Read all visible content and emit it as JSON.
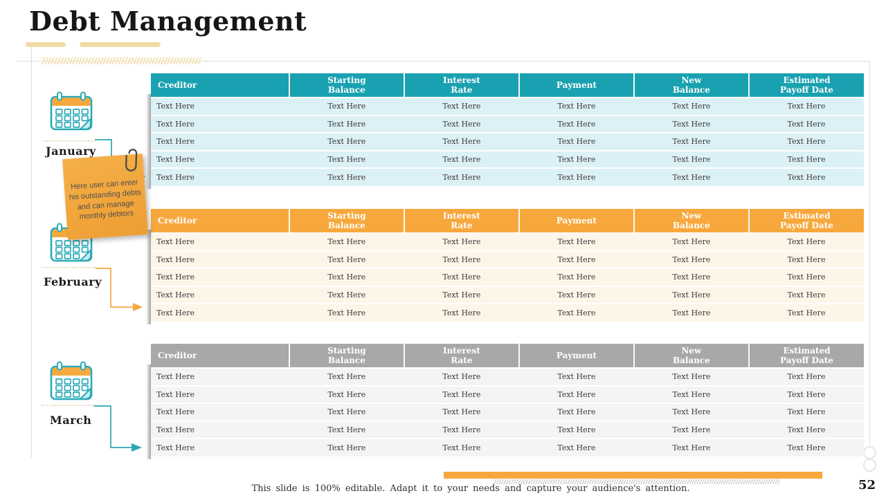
{
  "slide": {
    "title": "Debt Management",
    "page_number": "52",
    "footer_text": "This slide is 100% editable. Adapt it to your needs and capture your audience's attention."
  },
  "months": [
    {
      "label": "January"
    },
    {
      "label": "February"
    },
    {
      "label": "March"
    }
  ],
  "note": {
    "text": "Here user can enter\nhis outstanding debts\nand can manage\nmonthly debtors"
  },
  "table_columns": [
    "Creditor",
    "Starting\nBalance",
    "Interest\nRate",
    "Payment",
    "New\nBalance",
    "Estimated\nPayoff Date"
  ],
  "tables": [
    {
      "month": "January",
      "header_bg": "#1AA1B1",
      "row_bg": "#DCF1F6",
      "rows": [
        [
          "Text Here",
          "Text Here",
          "Text Here",
          "Text Here",
          "Text Here",
          "Text Here"
        ],
        [
          "Text Here",
          "Text Here",
          "Text Here",
          "Text Here",
          "Text Here",
          "Text Here"
        ],
        [
          "Text Here",
          "Text Here",
          "Text Here",
          "Text Here",
          "Text Here",
          "Text Here"
        ],
        [
          "Text Here",
          "Text Here",
          "Text Here",
          "Text Here",
          "Text Here",
          "Text Here"
        ],
        [
          "Text Here",
          "Text Here",
          "Text Here",
          "Text Here",
          "Text Here",
          "Text Here"
        ]
      ]
    },
    {
      "month": "February",
      "header_bg": "#F7A83C",
      "row_bg": "#FDF6E8",
      "rows": [
        [
          "Text Here",
          "Text Here",
          "Text Here",
          "Text Here",
          "Text Here",
          "Text Here"
        ],
        [
          "Text Here",
          "Text Here",
          "Text Here",
          "Text Here",
          "Text Here",
          "Text Here"
        ],
        [
          "Text Here",
          "Text Here",
          "Text Here",
          "Text Here",
          "Text Here",
          "Text Here"
        ],
        [
          "Text Here",
          "Text Here",
          "Text Here",
          "Text Here",
          "Text Here",
          "Text Here"
        ],
        [
          "Text Here",
          "Text Here",
          "Text Here",
          "Text Here",
          "Text Here",
          "Text Here"
        ]
      ]
    },
    {
      "month": "March",
      "header_bg": "#A8A8A8",
      "row_bg": "#F4F4F4",
      "rows": [
        [
          "Text Here",
          "Text Here",
          "Text Here",
          "Text Here",
          "Text Here",
          "Text Here"
        ],
        [
          "Text Here",
          "Text Here",
          "Text Here",
          "Text Here",
          "Text Here",
          "Text Here"
        ],
        [
          "Text Here",
          "Text Here",
          "Text Here",
          "Text Here",
          "Text Here",
          "Text Here"
        ],
        [
          "Text Here",
          "Text Here",
          "Text Here",
          "Text Here",
          "Text Here",
          "Text Here"
        ],
        [
          "Text Here",
          "Text Here",
          "Text Here",
          "Text Here",
          "Text Here",
          "Text Here"
        ]
      ]
    }
  ],
  "colors": {
    "teal": "#1AA1B1",
    "orange": "#F7A83C",
    "gray": "#A8A8A8",
    "note_yellow": "#F2A73C",
    "tan_accent": "#F2DBA6"
  },
  "icons": [
    "calendar-icon",
    "paperclip-icon",
    "arrow-right-icon"
  ]
}
